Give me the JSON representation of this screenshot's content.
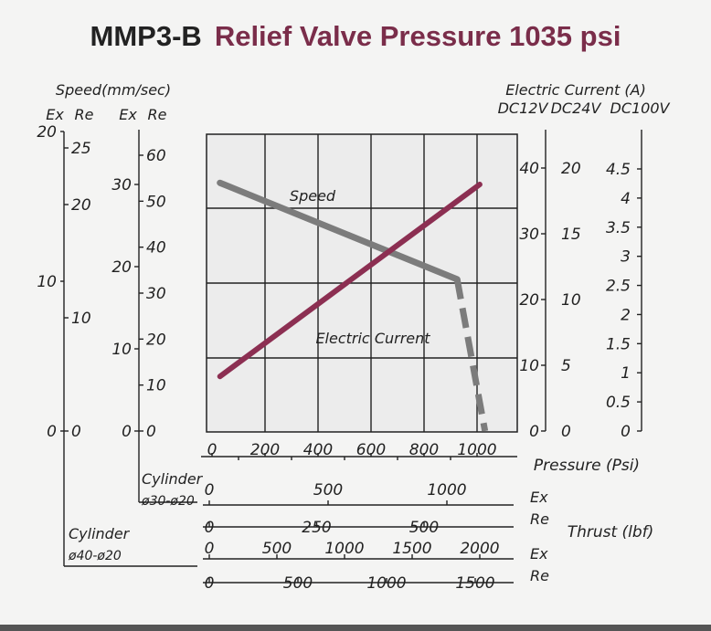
{
  "title": {
    "model": "MMP3-B",
    "text": "Relief Valve Pressure 1035 psi"
  },
  "axes": {
    "speed_title": "Speed(mm/sec)",
    "ex_label": "Ex",
    "re_label": "Re",
    "speed_small_ex": [
      "0",
      "10",
      "20"
    ],
    "speed_small_re": [
      "0",
      "10",
      "20",
      "25"
    ],
    "speed_large_ex": [
      "0",
      "10",
      "20",
      "30"
    ],
    "speed_large_re": [
      "0",
      "10",
      "20",
      "30",
      "40",
      "50",
      "60"
    ],
    "current_title": "Electric Current (A)",
    "dc12_label": "DC12V",
    "dc24_label": "DC24V",
    "dc100_label": "DC100V",
    "dc12_ticks": [
      "0",
      "10",
      "20",
      "30",
      "40"
    ],
    "dc24_ticks": [
      "0",
      "5",
      "10",
      "15",
      "20"
    ],
    "dc100_ticks": [
      "0",
      "0.5",
      "1",
      "1.5",
      "2",
      "2.5",
      "3",
      "3.5",
      "4",
      "4.5"
    ],
    "pressure_label": "Pressure (Psi)",
    "pressure_ticks": [
      "0",
      "200",
      "400",
      "600",
      "800",
      "1000"
    ],
    "cyl1_label": "Cylinder",
    "cyl1_sub": "ø30-ø20",
    "cyl2_label": "Cylinder",
    "cyl2_sub": "ø40-ø20",
    "cyl1_ex_ticks": [
      "0",
      "500",
      "1000"
    ],
    "cyl1_re_ticks": [
      "0",
      "250",
      "500"
    ],
    "cyl2_ex_ticks": [
      "0",
      "500",
      "1000",
      "1500",
      "2000"
    ],
    "cyl2_re_ticks": [
      "0",
      "500",
      "1000",
      "1500"
    ],
    "thrust_label": "Thrust (lbf)"
  },
  "chart_data": {
    "type": "line",
    "title": "MMP3-B Relief Valve Pressure 1035 psi",
    "xlabel": "Pressure (Psi)",
    "xlim": [
      0,
      1150
    ],
    "grid": true,
    "series": [
      {
        "name": "Speed",
        "axis": "Speed Re (mm/sec) 0-60",
        "color": "#7c7c7c",
        "x": [
          30,
          925
        ],
        "y": [
          54,
          33
        ],
        "continuation": {
          "style": "dashed",
          "x": [
            925,
            1030
          ],
          "y": [
            33,
            0
          ]
        }
      },
      {
        "name": "Electric Current",
        "axis": "DC12V (A) 0-44",
        "color": "#8c2f52",
        "x": [
          30,
          1010
        ],
        "y": [
          8.3,
          37.5
        ]
      }
    ]
  }
}
